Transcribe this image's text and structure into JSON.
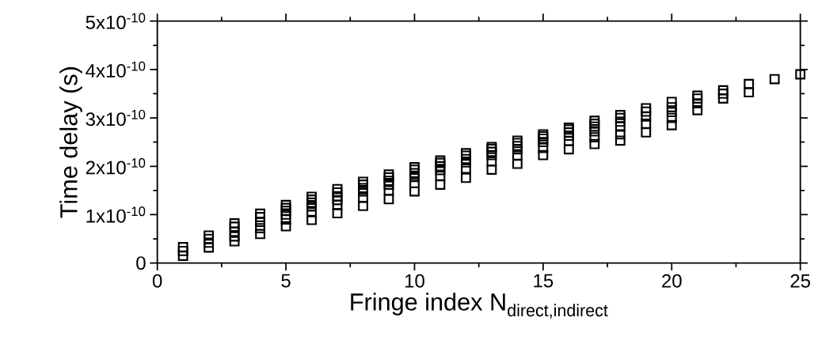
{
  "chart_data": {
    "type": "scatter",
    "xlabel": "\\text{Fringe index N}_{\\text{direct,indirect}}",
    "ylabel": "Time delay (s)",
    "xlim": [
      0,
      25
    ],
    "xticks": [
      0,
      5,
      10,
      15,
      20,
      25
    ],
    "ylim": [
      0,
      5e-10
    ],
    "yticks": [
      0,
      {
        "value": 1e-10,
        "label": "1x10$^{-10}$"
      },
      {
        "value": 2e-10,
        "label": "2x10$^{-10}$"
      },
      {
        "value": 3e-10,
        "label": "3x10$^{-10}$"
      },
      {
        "value": 4e-10,
        "label": "4x10$^{-10}$"
      },
      {
        "value": 5e-10,
        "label": "5x10$^{-10}$"
      }
    ],
    "marker": "square",
    "series": [
      {
        "color": "#000000",
        "x": [
          1,
          1,
          1,
          2,
          2,
          2,
          2,
          3,
          3,
          3,
          3,
          3,
          4,
          4,
          4,
          4,
          4,
          5,
          5,
          5,
          5,
          5,
          5,
          6,
          6,
          6,
          6,
          6,
          6,
          7,
          7,
          7,
          7,
          7,
          7,
          8,
          8,
          8,
          8,
          8,
          8,
          9,
          9,
          9,
          9,
          9,
          9,
          10,
          10,
          10,
          10,
          10,
          10,
          11,
          11,
          11,
          11,
          11,
          11,
          12,
          12,
          12,
          12,
          12,
          12,
          13,
          13,
          13,
          13,
          13,
          13,
          14,
          14,
          14,
          14,
          14,
          14,
          15,
          15,
          15,
          15,
          15,
          15,
          16,
          16,
          16,
          16,
          16,
          16,
          17,
          17,
          17,
          17,
          17,
          17,
          18,
          18,
          18,
          18,
          18,
          18,
          19,
          19,
          19,
          19,
          19,
          20,
          20,
          20,
          20,
          20,
          21,
          21,
          21,
          21,
          22,
          22,
          22,
          23,
          23,
          24,
          25
        ],
        "values": [
          1.5e-11,
          2.5e-11,
          3.3e-11,
          3.2e-11,
          4.2e-11,
          5e-11,
          5.7e-11,
          4.5e-11,
          5.5e-11,
          6.5e-11,
          7.5e-11,
          8.2e-11,
          6e-11,
          7.2e-11,
          8.5e-11,
          9.5e-11,
          1.02e-10,
          7.6e-11,
          9e-11,
          1e-10,
          1.08e-10,
          1.14e-10,
          1.2e-10,
          8.9e-11,
          1.05e-10,
          1.17e-10,
          1.25e-10,
          1.31e-10,
          1.37e-10,
          1.03e-10,
          1.2e-10,
          1.3e-10,
          1.38e-10,
          1.46e-10,
          1.53e-10,
          1.18e-10,
          1.35e-10,
          1.48e-10,
          1.55e-10,
          1.62e-10,
          1.68e-10,
          1.32e-10,
          1.5e-10,
          1.62e-10,
          1.7e-10,
          1.77e-10,
          1.83e-10,
          1.48e-10,
          1.65e-10,
          1.78e-10,
          1.86e-10,
          1.93e-10,
          1.98e-10,
          1.62e-10,
          1.8e-10,
          1.92e-10,
          2e-10,
          2.07e-10,
          2.12e-10,
          1.76e-10,
          1.95e-10,
          2.08e-10,
          2.15e-10,
          2.22e-10,
          2.27e-10,
          1.93e-10,
          2.1e-10,
          2.23e-10,
          2.3e-10,
          2.36e-10,
          2.4e-10,
          2.05e-10,
          2.22e-10,
          2.35e-10,
          2.42e-10,
          2.48e-10,
          2.53e-10,
          2.23e-10,
          2.38e-10,
          2.5e-10,
          2.57e-10,
          2.62e-10,
          2.66e-10,
          2.35e-10,
          2.52e-10,
          2.63e-10,
          2.7e-10,
          2.76e-10,
          2.8e-10,
          2.46e-10,
          2.6e-10,
          2.72e-10,
          2.82e-10,
          2.88e-10,
          2.94e-10,
          2.53e-10,
          2.66e-10,
          2.82e-10,
          2.92e-10,
          3e-10,
          3.06e-10,
          2.7e-10,
          2.88e-10,
          3.03e-10,
          3.13e-10,
          3.2e-10,
          2.85e-10,
          3e-10,
          3.12e-10,
          3.22e-10,
          3.33e-10,
          3.16e-10,
          3.3e-10,
          3.4e-10,
          3.46e-10,
          3.4e-10,
          3.5e-10,
          3.57e-10,
          3.53e-10,
          3.7e-10,
          3.8e-10,
          3.9e-10
        ]
      }
    ]
  }
}
